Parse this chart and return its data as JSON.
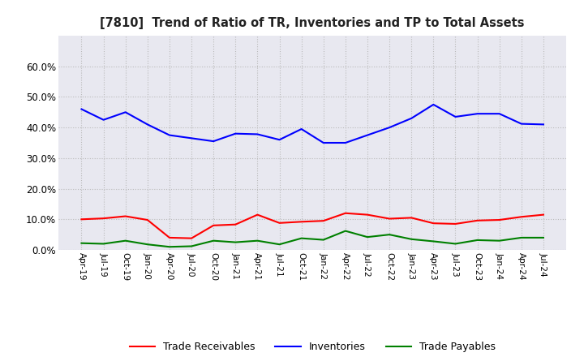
{
  "title": "[7810]  Trend of Ratio of TR, Inventories and TP to Total Assets",
  "x_labels": [
    "Apr-19",
    "Jul-19",
    "Oct-19",
    "Jan-20",
    "Apr-20",
    "Jul-20",
    "Oct-20",
    "Jan-21",
    "Apr-21",
    "Jul-21",
    "Oct-21",
    "Jan-22",
    "Apr-22",
    "Jul-22",
    "Oct-22",
    "Jan-23",
    "Apr-23",
    "Jul-23",
    "Oct-23",
    "Jan-24",
    "Apr-24",
    "Jul-24"
  ],
  "trade_receivables": [
    0.1,
    0.103,
    0.11,
    0.098,
    0.04,
    0.038,
    0.08,
    0.083,
    0.115,
    0.088,
    0.092,
    0.095,
    0.12,
    0.115,
    0.102,
    0.105,
    0.087,
    0.085,
    0.096,
    0.098,
    0.108,
    0.115
  ],
  "inventories": [
    0.46,
    0.425,
    0.45,
    0.41,
    0.375,
    0.365,
    0.355,
    0.38,
    0.378,
    0.36,
    0.395,
    0.35,
    0.35,
    0.375,
    0.4,
    0.43,
    0.475,
    0.435,
    0.445,
    0.445,
    0.412,
    0.41
  ],
  "trade_payables": [
    0.022,
    0.02,
    0.03,
    0.018,
    0.01,
    0.012,
    0.03,
    0.025,
    0.03,
    0.018,
    0.038,
    0.033,
    0.062,
    0.042,
    0.05,
    0.035,
    0.028,
    0.02,
    0.032,
    0.03,
    0.04,
    0.04
  ],
  "tr_color": "#ff0000",
  "inv_color": "#0000ff",
  "tp_color": "#008000",
  "ylim": [
    0.0,
    0.7
  ],
  "yticks": [
    0.0,
    0.1,
    0.2,
    0.3,
    0.4,
    0.5,
    0.6
  ],
  "ytick_labels": [
    "0.0%",
    "10.0%",
    "20.0%",
    "30.0%",
    "40.0%",
    "50.0%",
    "60.0%"
  ],
  "grid_color": "#bbbbbb",
  "background_color": "#ffffff",
  "plot_bg_color": "#e8e8f0",
  "legend_labels": [
    "Trade Receivables",
    "Inventories",
    "Trade Payables"
  ]
}
